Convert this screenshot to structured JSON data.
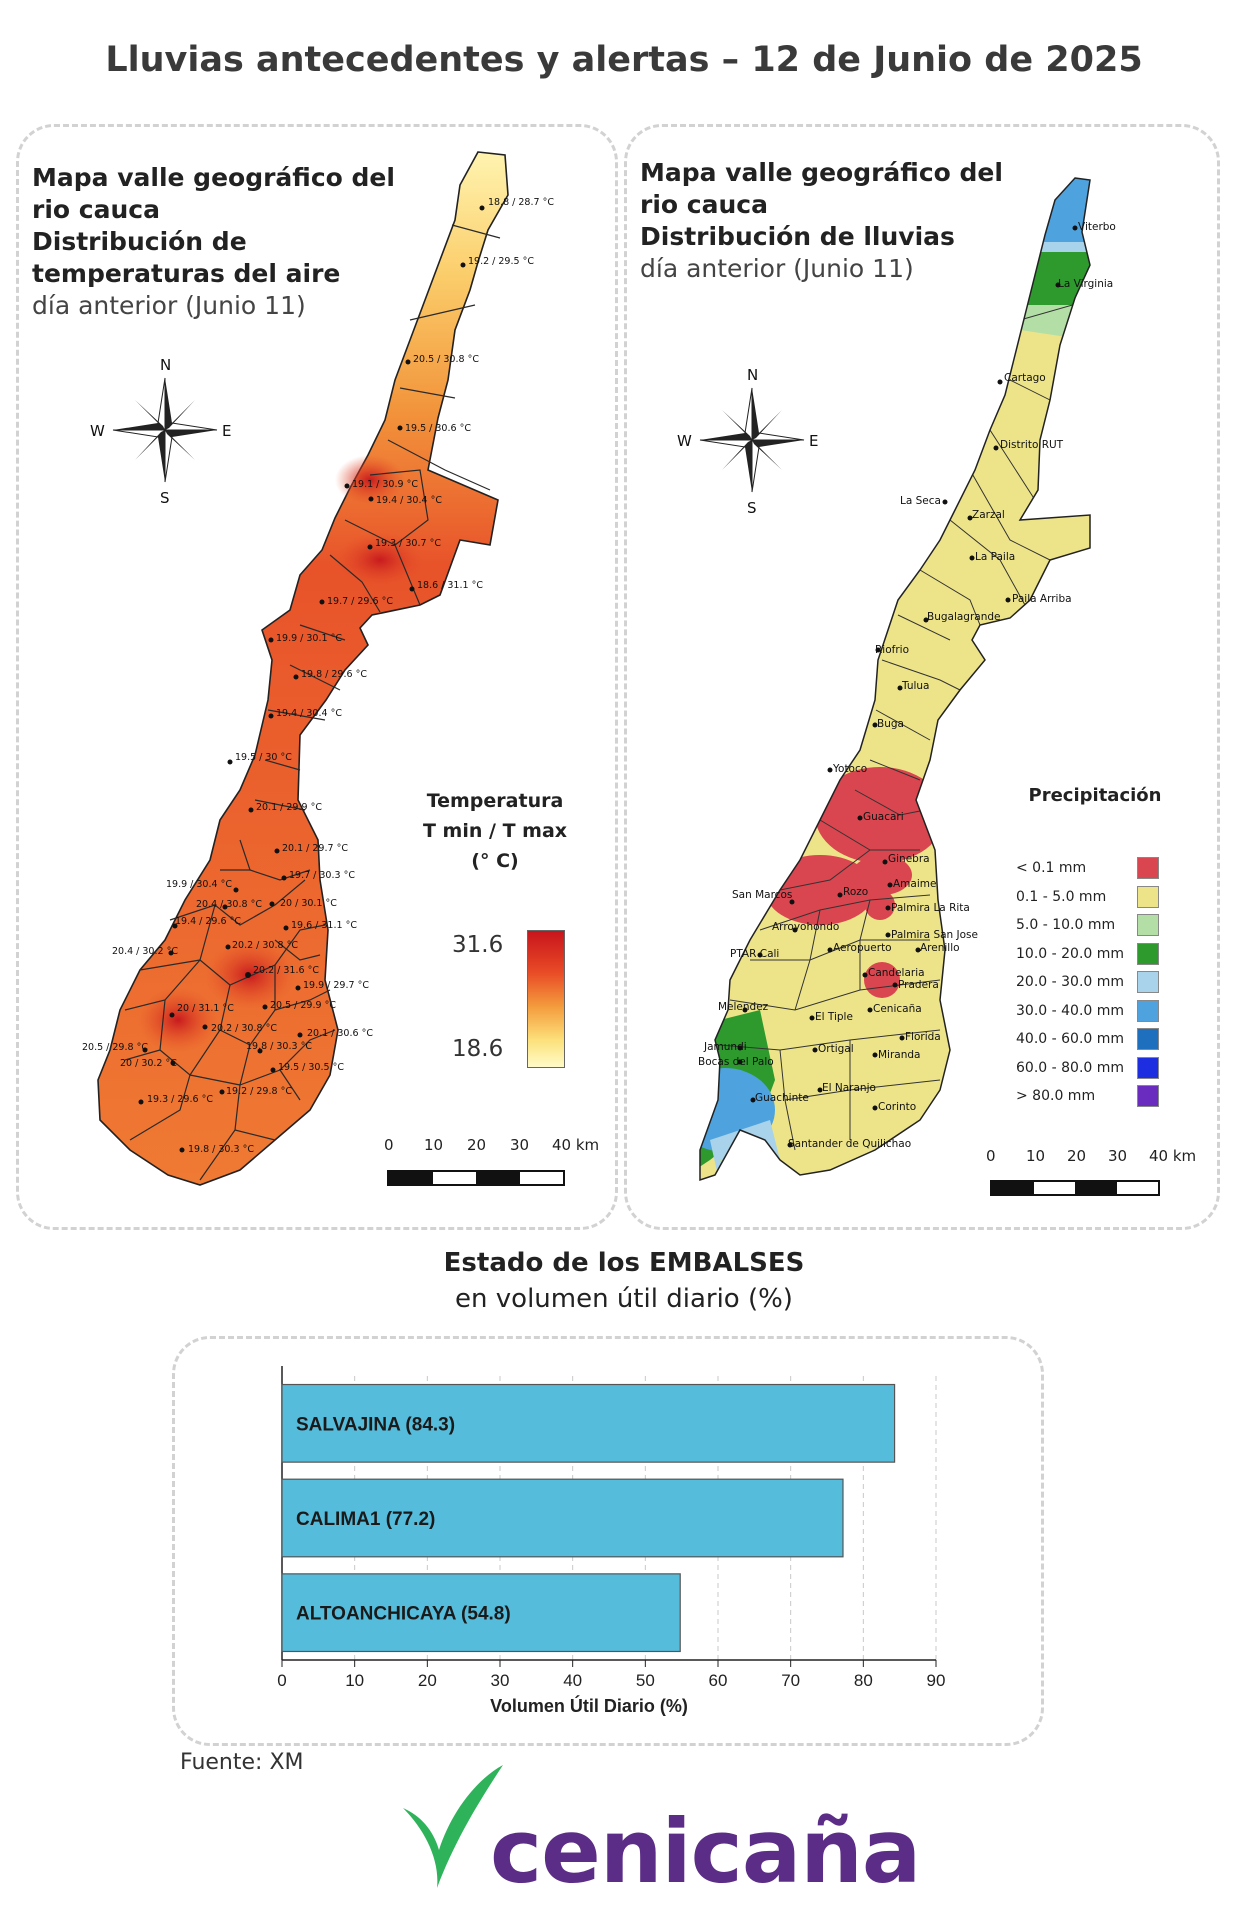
{
  "title": "Lluvias antecedentes y alertas – 12 de Junio de 2025",
  "temp_map": {
    "title_line1": "Mapa valle geográfico del",
    "title_line2": "rio cauca",
    "title_line3": "Distribución de",
    "title_line4": "temperaturas del aire",
    "subtitle": "día anterior (Junio 11)",
    "legend_title_1": "Temperatura",
    "legend_title_2": "T min / T max",
    "legend_title_3": "(° C)",
    "legend_max": "31.6",
    "legend_min": "18.6",
    "legend_colors": [
      "#c8141c",
      "#e84a26",
      "#f39a3c",
      "#fce07a",
      "#fffbc8"
    ],
    "compass": {
      "n": "N",
      "s": "S",
      "e": "E",
      "w": "W"
    },
    "scale_labels": [
      "0",
      "10",
      "20",
      "30",
      "40 km"
    ],
    "stations": [
      "18.8 / 28.7 °C",
      "19.2 / 29.5 °C",
      "20.5 / 30.8 °C",
      "19.5 / 30.6 °C",
      "19.1 / 30.9 °C",
      "19.4 / 30.4 °C",
      "19.3 / 30.7 °C",
      "18.6 / 31.1 °C",
      "19.7 / 29.6 °C",
      "19.9 / 30.1 °C",
      "19.8 / 29.6 °C",
      "19.4 / 30.4 °C",
      "19.5 / 30 °C",
      "20.1 / 29.9 °C",
      "20.1 / 29.7 °C",
      "19.9 / 30.4 °C",
      "19.7 / 30.3 °C",
      "20.4 / 30.8 °C",
      "20 / 30.1 °C",
      "19.4 / 29.6 °C",
      "19.6 / 31.1 °C",
      "20.4 / 30.2 °C",
      "20.2 / 30.8 °C",
      "20.2 / 31.6 °C",
      "19.9 / 29.7 °C",
      "20 / 31.1 °C",
      "20.5 / 29.9 °C",
      "20.2 / 30.8 °C",
      "20.1 / 30.6 °C",
      "20.5 / 29.8 °C",
      "20 / 30.2 °C",
      "19.8 / 30.3 °C",
      "19.5 / 30.5 °C",
      "19.3 / 29.6 °C",
      "19.2 / 29.8 °C",
      "19.8 / 30.3 °C"
    ]
  },
  "rain_map": {
    "title_line1": "Mapa valle geográfico del",
    "title_line2": "rio cauca",
    "title_line3": "Distribución de lluvias",
    "subtitle": "día anterior (Junio 11)",
    "legend_title": "Precipitación",
    "compass": {
      "n": "N",
      "s": "S",
      "e": "E",
      "w": "W"
    },
    "scale_labels": [
      "0",
      "10",
      "20",
      "30",
      "40 km"
    ],
    "legend": [
      {
        "label": "< 0.1 mm",
        "color": "#d9464f"
      },
      {
        "label": "0.1 - 5.0 mm",
        "color": "#ede48a"
      },
      {
        "label": "5.0 - 10.0 mm",
        "color": "#b3dfa6"
      },
      {
        "label": "10.0 - 20.0 mm",
        "color": "#2e9a2e"
      },
      {
        "label": "20.0 - 30.0 mm",
        "color": "#a9d3ea"
      },
      {
        "label": "30.0 - 40.0 mm",
        "color": "#4ea3df"
      },
      {
        "label": "40.0 - 60.0 mm",
        "color": "#1f6fbf"
      },
      {
        "label": "60.0 - 80.0 mm",
        "color": "#1c2ee0"
      },
      {
        "label": "> 80.0 mm",
        "color": "#6a2bbf"
      }
    ],
    "places": [
      "Viterbo",
      "La Virginia",
      "Cartago",
      "Distrito RUT",
      "La Seca",
      "Zarzal",
      "La Paila",
      "Paila Arriba",
      "Bugalagrande",
      "Riofrio",
      "Tulua",
      "Buga",
      "Yotoco",
      "Guacari",
      "Ginebra",
      "Amaime",
      "San Marcos",
      "Rozo",
      "Palmira La Rita",
      "Arroyohondo",
      "Palmira San Jose",
      "Aeropuerto",
      "Arenillo",
      "PTAR Cali",
      "Candelaria",
      "Pradera",
      "Melendez",
      "El Tiple",
      "Cenicaña",
      "Florida",
      "Jamundi",
      "Bocas del Palo",
      "Ortigal",
      "Miranda",
      "Guachinte",
      "El Naranjo",
      "Corinto",
      "Santander de Quilichao"
    ]
  },
  "reservoirs": {
    "title": "Estado de los EMBALSES",
    "subtitle": "en volumen útil diario (%)",
    "bar_color": "#56bcdc",
    "chart_data": {
      "type": "bar",
      "orientation": "horizontal",
      "categories": [
        "SALVAJINA (84.3)",
        "CALIMA1 (77.2)",
        "ALTOANCHICAYA (54.8)"
      ],
      "values": [
        84.3,
        77.2,
        54.8
      ],
      "xlabel": "Volumen Útil Diario (%)",
      "xlim": [
        0,
        90
      ],
      "xticks": [
        "0",
        "10",
        "20",
        "30",
        "40",
        "50",
        "60",
        "70",
        "80",
        "90"
      ],
      "grid": true
    }
  },
  "source": "Fuente: XM",
  "logo": {
    "text": "cenicaña",
    "color": "#5b2d86",
    "mark_color": "#2fb35a"
  }
}
